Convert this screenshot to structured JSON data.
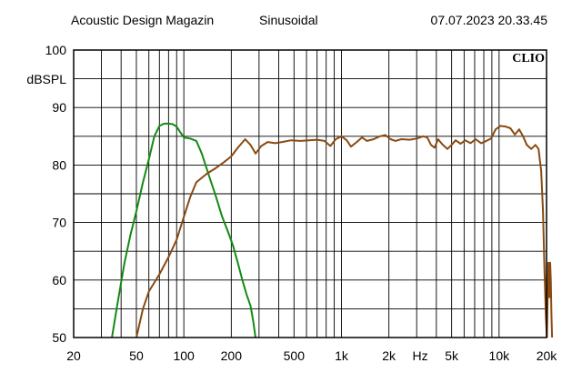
{
  "header": {
    "left": "Acoustic Design Magazin",
    "middle": "Sinusoidal",
    "right": "07.07.2023 20.33.45"
  },
  "chart_data": {
    "type": "line",
    "title": "",
    "brand": "CLIO",
    "ylabel": "dBSPL",
    "xlabel": "Hz",
    "xscale": "log",
    "xlim": [
      20,
      20000
    ],
    "ylim": [
      50,
      100
    ],
    "grid": true,
    "x_ticks": [
      {
        "value": 20,
        "label": "20"
      },
      {
        "value": 50,
        "label": "50"
      },
      {
        "value": 100,
        "label": "100"
      },
      {
        "value": 200,
        "label": "200"
      },
      {
        "value": 500,
        "label": "500"
      },
      {
        "value": 1000,
        "label": "1k"
      },
      {
        "value": 2000,
        "label": "2k"
      },
      {
        "value": 5000,
        "label": "5k"
      },
      {
        "value": 10000,
        "label": "10k"
      },
      {
        "value": 20000,
        "label": "20k"
      }
    ],
    "y_ticks": [
      {
        "value": 100,
        "label": "100"
      },
      {
        "value": 90,
        "label": "90"
      },
      {
        "value": 80,
        "label": "80"
      },
      {
        "value": 70,
        "label": "70"
      },
      {
        "value": 60,
        "label": "60"
      },
      {
        "value": 50,
        "label": "50"
      }
    ],
    "series": [
      {
        "color": "#138a13",
        "points": [
          [
            35,
            50
          ],
          [
            38,
            56
          ],
          [
            42,
            63
          ],
          [
            46,
            68
          ],
          [
            50,
            72
          ],
          [
            55,
            77
          ],
          [
            60,
            81
          ],
          [
            65,
            85
          ],
          [
            70,
            86.8
          ],
          [
            75,
            87.2
          ],
          [
            80,
            87.2
          ],
          [
            85,
            87.1
          ],
          [
            90,
            86.7
          ],
          [
            95,
            85.7
          ],
          [
            100,
            84.8
          ],
          [
            110,
            84.6
          ],
          [
            120,
            84.2
          ],
          [
            130,
            82
          ],
          [
            145,
            78
          ],
          [
            160,
            74.5
          ],
          [
            175,
            71
          ],
          [
            190,
            68.5
          ],
          [
            205,
            66
          ],
          [
            220,
            63
          ],
          [
            235,
            60
          ],
          [
            250,
            57.5
          ],
          [
            265,
            55.5
          ],
          [
            275,
            53
          ],
          [
            285,
            50
          ]
        ]
      },
      {
        "color": "#8a4a12",
        "points": [
          [
            50,
            50
          ],
          [
            55,
            55
          ],
          [
            60,
            58
          ],
          [
            70,
            61
          ],
          [
            80,
            64
          ],
          [
            90,
            67
          ],
          [
            100,
            71
          ],
          [
            110,
            74.5
          ],
          [
            120,
            77
          ],
          [
            140,
            78.5
          ],
          [
            160,
            79.5
          ],
          [
            180,
            80.5
          ],
          [
            200,
            81.5
          ],
          [
            220,
            83
          ],
          [
            245,
            84.5
          ],
          [
            265,
            83.5
          ],
          [
            285,
            82
          ],
          [
            310,
            83.3
          ],
          [
            340,
            84
          ],
          [
            380,
            83.8
          ],
          [
            420,
            84
          ],
          [
            480,
            84.3
          ],
          [
            550,
            84.2
          ],
          [
            620,
            84.3
          ],
          [
            700,
            84.4
          ],
          [
            780,
            84.2
          ],
          [
            850,
            83.3
          ],
          [
            920,
            84.5
          ],
          [
            1000,
            85
          ],
          [
            1080,
            84.3
          ],
          [
            1150,
            83.2
          ],
          [
            1250,
            84
          ],
          [
            1350,
            84.8
          ],
          [
            1450,
            84.2
          ],
          [
            1600,
            84.5
          ],
          [
            1750,
            85
          ],
          [
            1900,
            85.2
          ],
          [
            2050,
            84.5
          ],
          [
            2200,
            84.2
          ],
          [
            2400,
            84.5
          ],
          [
            2700,
            84.4
          ],
          [
            3000,
            84.6
          ],
          [
            3300,
            85
          ],
          [
            3500,
            84.8
          ],
          [
            3700,
            83.5
          ],
          [
            3900,
            83
          ],
          [
            4100,
            84.5
          ],
          [
            4400,
            83.5
          ],
          [
            4700,
            82.8
          ],
          [
            5000,
            83.5
          ],
          [
            5300,
            84.3
          ],
          [
            5700,
            83.7
          ],
          [
            6100,
            84.3
          ],
          [
            6600,
            83.8
          ],
          [
            7100,
            84.5
          ],
          [
            7700,
            83.8
          ],
          [
            8300,
            84.2
          ],
          [
            8900,
            84.6
          ],
          [
            9500,
            86.2
          ],
          [
            10200,
            86.8
          ],
          [
            11000,
            86.7
          ],
          [
            11800,
            86.4
          ],
          [
            12600,
            85.3
          ],
          [
            13400,
            86.2
          ],
          [
            14200,
            85
          ],
          [
            15000,
            83.5
          ],
          [
            16000,
            82.8
          ],
          [
            17000,
            83.5
          ],
          [
            17800,
            82.8
          ],
          [
            18500,
            79
          ],
          [
            19000,
            72
          ],
          [
            19400,
            62
          ],
          [
            19800,
            54
          ],
          [
            20100,
            50
          ]
        ]
      },
      {
        "color": "#8a4a12",
        "points": [
          [
            20100,
            50
          ],
          [
            20300,
            56
          ],
          [
            20550,
            63
          ],
          [
            20700,
            62
          ],
          [
            20900,
            57
          ],
          [
            21100,
            63
          ],
          [
            21300,
            60
          ],
          [
            21500,
            54
          ],
          [
            21700,
            50
          ]
        ]
      }
    ]
  }
}
